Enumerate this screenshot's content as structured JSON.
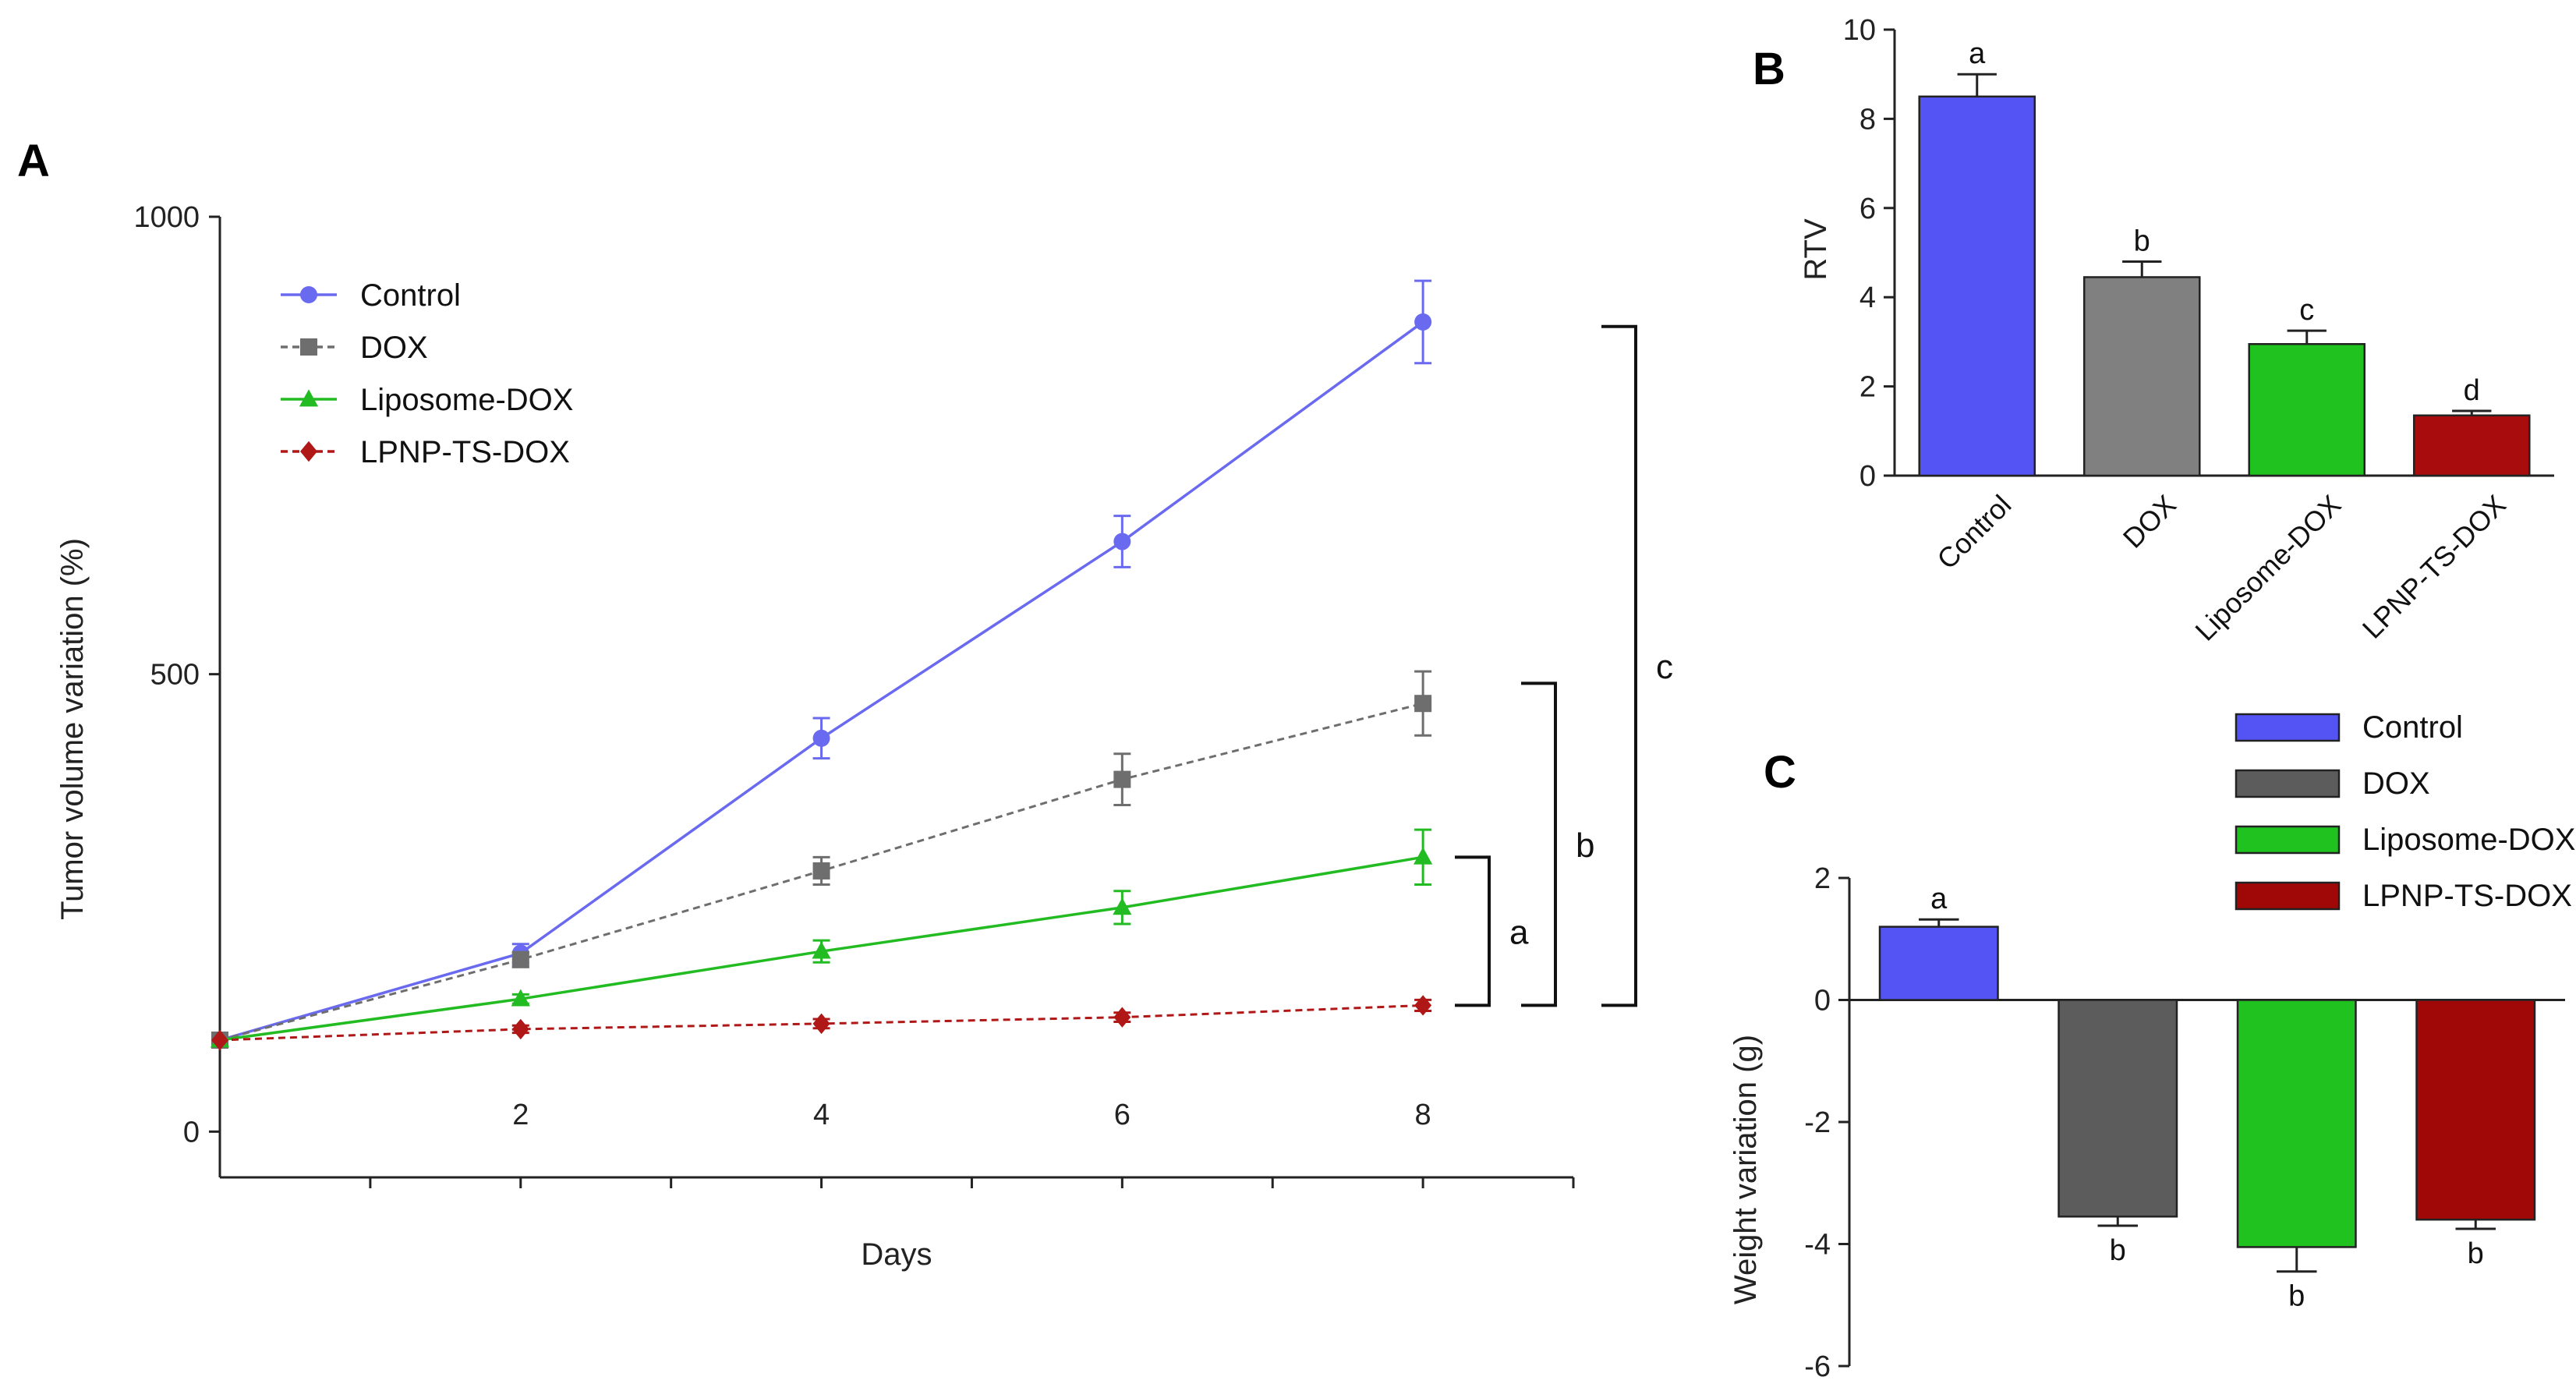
{
  "chart_data": [
    {
      "panel": "A",
      "type": "line",
      "xlabel": "Days",
      "ylabel": "Tumor volume variation (%)",
      "x": [
        0,
        2,
        4,
        6,
        8
      ],
      "xticks": [
        2,
        4,
        6,
        8
      ],
      "xlim": [
        0,
        9
      ],
      "ylim": [
        -50,
        1000
      ],
      "yticks": [
        0,
        500,
        1000
      ],
      "series": [
        {
          "name": "Control",
          "color": "#6a6af0",
          "marker": "circle",
          "dashed": false,
          "values": [
            100,
            195,
            430,
            645,
            885
          ],
          "errors": [
            0,
            10,
            22,
            28,
            45
          ]
        },
        {
          "name": "DOX",
          "color": "#6e6e6e",
          "marker": "square",
          "dashed": true,
          "values": [
            100,
            188,
            285,
            385,
            468
          ],
          "errors": [
            0,
            8,
            15,
            28,
            35
          ]
        },
        {
          "name": "Liposome-DOX",
          "color": "#22bb22",
          "marker": "triangle",
          "dashed": false,
          "values": [
            100,
            145,
            197,
            245,
            300
          ],
          "errors": [
            0,
            5,
            12,
            18,
            30
          ]
        },
        {
          "name": "LPNP-TS-DOX",
          "color": "#b01818",
          "marker": "diamond",
          "dashed": true,
          "values": [
            100,
            112,
            118,
            125,
            138
          ],
          "errors": [
            0,
            4,
            5,
            5,
            6
          ]
        }
      ],
      "brackets": [
        {
          "label": "a",
          "from": 138,
          "to": 300
        },
        {
          "label": "b",
          "from": 138,
          "to": 490
        },
        {
          "label": "c",
          "from": 138,
          "to": 880
        }
      ]
    },
    {
      "panel": "B",
      "type": "bar",
      "ylabel": "RTV",
      "ylim": [
        0,
        10
      ],
      "yticks": [
        0,
        2,
        4,
        6,
        8,
        10
      ],
      "categories": [
        "Control",
        "DOX",
        "Liposome-DOX",
        "LPNP-TS-DOX"
      ],
      "values": [
        8.5,
        4.45,
        2.95,
        1.35
      ],
      "errors": [
        0.5,
        0.35,
        0.3,
        0.1
      ],
      "letters": [
        "a",
        "b",
        "c",
        "d"
      ],
      "colors": [
        "#5454f5",
        "#808080",
        "#1fc21f",
        "#a80c0c"
      ]
    },
    {
      "panel": "C",
      "type": "bar",
      "ylabel": "Weight variation (g)",
      "ylim": [
        -6,
        2
      ],
      "yticks": [
        2,
        0,
        -2,
        -4,
        -6
      ],
      "categories": [
        "Control",
        "DOX",
        "Liposome-DOX",
        "LPNP-TS-DOX"
      ],
      "values": [
        1.2,
        -3.55,
        -4.05,
        -3.6
      ],
      "errors": [
        0.12,
        0.15,
        0.4,
        0.15
      ],
      "letters": [
        "a",
        "b",
        "b",
        "b"
      ],
      "colors": [
        "#5454f5",
        "#5c5c5c",
        "#1fc21f",
        "#a00808"
      ],
      "legend": [
        "Control",
        "DOX",
        "Liposome-DOX",
        "LPNP-TS-DOX"
      ]
    }
  ]
}
